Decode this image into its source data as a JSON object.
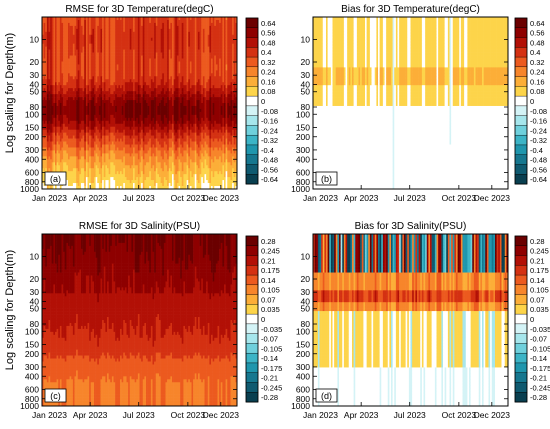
{
  "shared_ylabel": "Log scaling for Depth(m)",
  "chart_data": [
    {
      "type": "heatmap",
      "panel_tag": "(a)",
      "title": "RMSE for 3D Temperature(degC)",
      "x_tick_labels": [
        "Jan 2023",
        "Apr 2023",
        "Jul 2023",
        "Oct 2023",
        "Dec 2023"
      ],
      "y_tick_labels": [
        "10",
        "20",
        "30",
        "40",
        "50",
        "80",
        "100",
        "150",
        "200",
        "300",
        "400",
        "600",
        "800",
        "1000"
      ],
      "y_scale": "log",
      "ylim": [
        1000,
        5
      ],
      "colorbar_labels": [
        "0.64",
        "0.56",
        "0.48",
        "0.4",
        "0.32",
        "0.24",
        "0.16",
        "0.08",
        "0",
        "-0.08",
        "-0.16",
        "-0.24",
        "-0.32",
        "-0.4",
        "-0.48",
        "-0.56",
        "-0.64"
      ],
      "cbar_range": [
        -0.64,
        0.64
      ],
      "field": "rmse_temp"
    },
    {
      "type": "heatmap",
      "panel_tag": "(b)",
      "title": "Bias for 3D Temperature(degC)",
      "x_tick_labels": [
        "Jan 2023",
        "Apr 2023",
        "Jul 2023",
        "Oct 2023",
        "Dec 2023"
      ],
      "y_tick_labels": [
        "10",
        "20",
        "30",
        "40",
        "50",
        "80",
        "100",
        "150",
        "200",
        "300",
        "400",
        "600",
        "800",
        "1000"
      ],
      "y_scale": "log",
      "ylim": [
        1000,
        5
      ],
      "colorbar_labels": [
        "0.64",
        "0.56",
        "0.48",
        "0.4",
        "0.32",
        "0.24",
        "0.16",
        "0.08",
        "0",
        "-0.08",
        "-0.16",
        "-0.24",
        "-0.32",
        "-0.4",
        "-0.48",
        "-0.56",
        "-0.64"
      ],
      "cbar_range": [
        -0.64,
        0.64
      ],
      "field": "bias_temp"
    },
    {
      "type": "heatmap",
      "panel_tag": "(c)",
      "title": "RMSE for 3D Salinity(PSU)",
      "x_tick_labels": [
        "Jan 2023",
        "Apr 2023",
        "Jul 2023",
        "Oct 2023",
        "Dec 2023"
      ],
      "y_tick_labels": [
        "10",
        "20",
        "30",
        "40",
        "50",
        "80",
        "100",
        "150",
        "200",
        "300",
        "400",
        "600",
        "800",
        "1000"
      ],
      "y_scale": "log",
      "ylim": [
        1000,
        5
      ],
      "colorbar_labels": [
        "0.28",
        "0.245",
        "0.21",
        "0.175",
        "0.14",
        "0.105",
        "0.07",
        "0.035",
        "0",
        "-0.035",
        "-0.07",
        "-0.105",
        "-0.14",
        "-0.175",
        "-0.21",
        "-0.245",
        "-0.28"
      ],
      "cbar_range": [
        -0.28,
        0.28
      ],
      "field": "rmse_salt"
    },
    {
      "type": "heatmap",
      "panel_tag": "(d)",
      "title": "Bias for 3D Salinity(PSU)",
      "x_tick_labels": [
        "Jan 2023",
        "Apr 2023",
        "Jul 2023",
        "Oct 2023",
        "Dec 2023"
      ],
      "y_tick_labels": [
        "10",
        "20",
        "30",
        "40",
        "50",
        "80",
        "100",
        "150",
        "200",
        "300",
        "400",
        "600",
        "800",
        "1000"
      ],
      "y_scale": "log",
      "ylim": [
        1000,
        5
      ],
      "colorbar_labels": [
        "0.28",
        "0.245",
        "0.21",
        "0.175",
        "0.14",
        "0.105",
        "0.07",
        "0.035",
        "0",
        "-0.035",
        "-0.07",
        "-0.105",
        "-0.14",
        "-0.175",
        "-0.21",
        "-0.245",
        "-0.28"
      ],
      "cbar_range": [
        -0.28,
        0.28
      ],
      "field": "bias_salt"
    }
  ]
}
